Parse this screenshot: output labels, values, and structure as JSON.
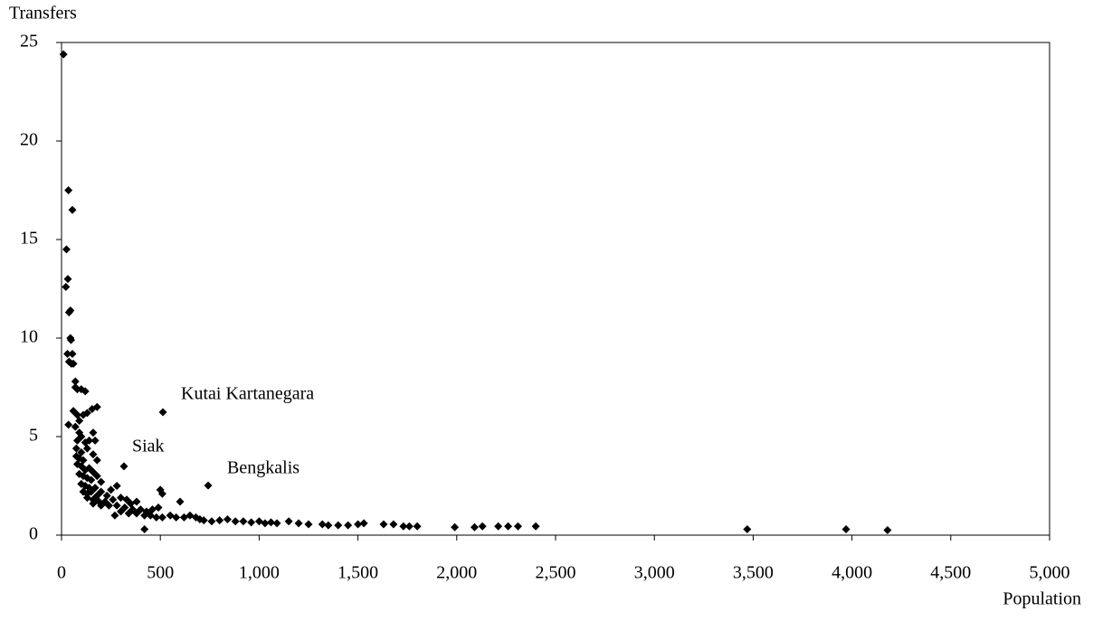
{
  "chart_data": {
    "type": "scatter",
    "y_label": "Transfers",
    "x_label": "Population",
    "color": "#000000",
    "xlim": [
      0,
      5000
    ],
    "xticks": [
      0,
      500,
      {
        "value": 1000,
        "label": "1,000"
      },
      {
        "value": 1500,
        "label": "1,500"
      },
      {
        "value": 2000,
        "label": "2,000"
      },
      {
        "value": 2500,
        "label": "2,500"
      },
      {
        "value": 3000,
        "label": "3,000"
      },
      {
        "value": 3500,
        "label": "3,500"
      },
      {
        "value": 4000,
        "label": "4,000"
      },
      {
        "value": 4500,
        "label": "4,500"
      },
      {
        "value": 5000,
        "label": "5,000"
      }
    ],
    "ylim": [
      0,
      25
    ],
    "yticks": [
      0,
      5,
      10,
      15,
      20,
      25
    ],
    "x": [
      10,
      35,
      55,
      25,
      32,
      22,
      45,
      38,
      45,
      48,
      30,
      55,
      38,
      60,
      50,
      70,
      80,
      100,
      120,
      70,
      60,
      80,
      110,
      130,
      155,
      180,
      35,
      90,
      70,
      90,
      160,
      100,
      80,
      120,
      140,
      170,
      75,
      100,
      130,
      160,
      75,
      90,
      110,
      180,
      80,
      100,
      120,
      140,
      160,
      90,
      110,
      130,
      150,
      180,
      100,
      120,
      140,
      170,
      200,
      110,
      130,
      150,
      180,
      200,
      230,
      250,
      280,
      130,
      160,
      190,
      220,
      260,
      300,
      330,
      350,
      380,
      160,
      200,
      240,
      280,
      320,
      360,
      400,
      430,
      460,
      490,
      500,
      510,
      600,
      270,
      300,
      340,
      380,
      420,
      420,
      450,
      480,
      510,
      550,
      580,
      620,
      650,
      680,
      700,
      720,
      760,
      800,
      840,
      880,
      920,
      960,
      1000,
      1030,
      1060,
      1090,
      1150,
      1200,
      1250,
      1320,
      1350,
      1400,
      1450,
      1500,
      1530,
      1630,
      1680,
      1730,
      1760,
      1800,
      1990,
      2090,
      2130,
      2210,
      2260,
      2310,
      2400,
      3470,
      3970,
      4180,
      513,
      316,
      742
    ],
    "values": [
      24.4,
      17.5,
      16.5,
      14.5,
      13.0,
      12.6,
      11.4,
      11.3,
      10.0,
      9.9,
      9.2,
      9.2,
      8.8,
      8.7,
      8.7,
      7.8,
      7.4,
      7.4,
      7.3,
      7.5,
      6.3,
      6.1,
      6.1,
      6.2,
      6.4,
      6.5,
      5.6,
      5.8,
      5.5,
      5.2,
      5.2,
      5.0,
      4.8,
      4.7,
      4.8,
      4.8,
      4.4,
      4.2,
      4.4,
      4.1,
      4.0,
      3.9,
      3.8,
      3.8,
      3.6,
      3.5,
      3.3,
      3.4,
      3.2,
      3.1,
      3.0,
      2.9,
      2.8,
      3.0,
      2.6,
      2.5,
      2.4,
      2.4,
      2.7,
      2.2,
      2.1,
      2.2,
      2.0,
      2.2,
      2.0,
      2.3,
      2.5,
      1.9,
      1.8,
      1.7,
      1.7,
      1.8,
      1.9,
      1.8,
      1.6,
      1.7,
      1.6,
      1.5,
      1.5,
      1.5,
      1.4,
      1.3,
      1.3,
      1.2,
      1.3,
      1.4,
      2.3,
      2.1,
      1.7,
      1.0,
      1.2,
      1.1,
      1.1,
      1.0,
      0.3,
      1.0,
      0.9,
      0.9,
      1.0,
      0.9,
      0.9,
      1.0,
      0.9,
      0.8,
      0.75,
      0.7,
      0.75,
      0.8,
      0.7,
      0.7,
      0.65,
      0.7,
      0.6,
      0.65,
      0.6,
      0.7,
      0.6,
      0.55,
      0.55,
      0.5,
      0.5,
      0.5,
      0.55,
      0.6,
      0.55,
      0.55,
      0.45,
      0.45,
      0.45,
      0.4,
      0.4,
      0.45,
      0.45,
      0.45,
      0.45,
      0.45,
      0.3,
      0.3,
      0.25,
      6.24,
      3.49,
      2.52
    ],
    "annotations": [
      {
        "text": "Kutai Kartanegara",
        "x": 513,
        "y": 6.24
      },
      {
        "text": "Siak",
        "x": 316,
        "y": 3.49
      },
      {
        "text": "Bengkalis",
        "x": 742,
        "y": 2.52
      }
    ]
  }
}
